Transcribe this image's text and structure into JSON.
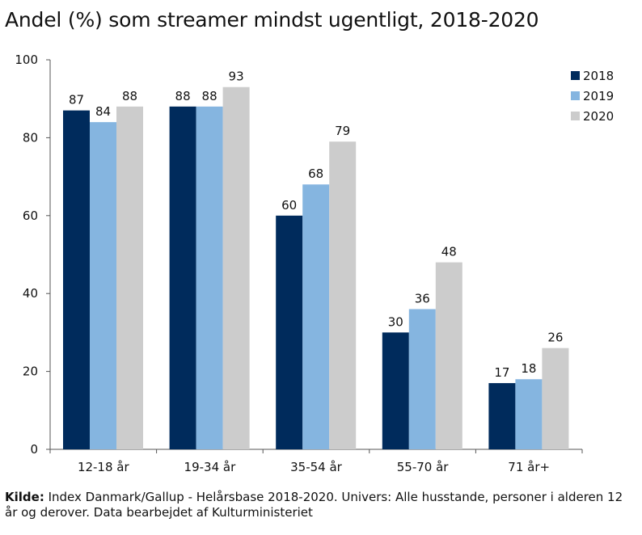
{
  "title": "Andel (%) som streamer mindst ugentligt, 2018-2020",
  "source": {
    "label": "Kilde:",
    "text": "Index Danmark/Gallup - Helårsbase 2018-2020. Univers: Alle husstande, personer i alderen 12 år og derover. Data bearbejdet af Kulturministeriet"
  },
  "colors": {
    "2018": "#002b5c",
    "2019": "#85b5e0",
    "2020": "#cccccc"
  },
  "chart_data": {
    "type": "bar",
    "categories": [
      "12-18 år",
      "19-34 år",
      "35-54 år",
      "55-70 år",
      "71 år+"
    ],
    "series": [
      {
        "name": "2018",
        "values": [
          87,
          88,
          60,
          30,
          17
        ]
      },
      {
        "name": "2019",
        "values": [
          84,
          88,
          68,
          36,
          18
        ]
      },
      {
        "name": "2020",
        "values": [
          88,
          93,
          79,
          48,
          26
        ]
      }
    ],
    "data_labels": [
      [
        "87",
        "88",
        "60",
        "30",
        "17"
      ],
      [
        "84",
        "88",
        "68",
        "36",
        "18"
      ],
      [
        "88",
        "93",
        "79",
        "48",
        "26"
      ]
    ],
    "yticks": [
      0,
      20,
      40,
      60,
      80,
      100
    ],
    "ylim": [
      0,
      100
    ],
    "xlabel": "",
    "ylabel": "",
    "grid": false,
    "legend": "top-right"
  }
}
